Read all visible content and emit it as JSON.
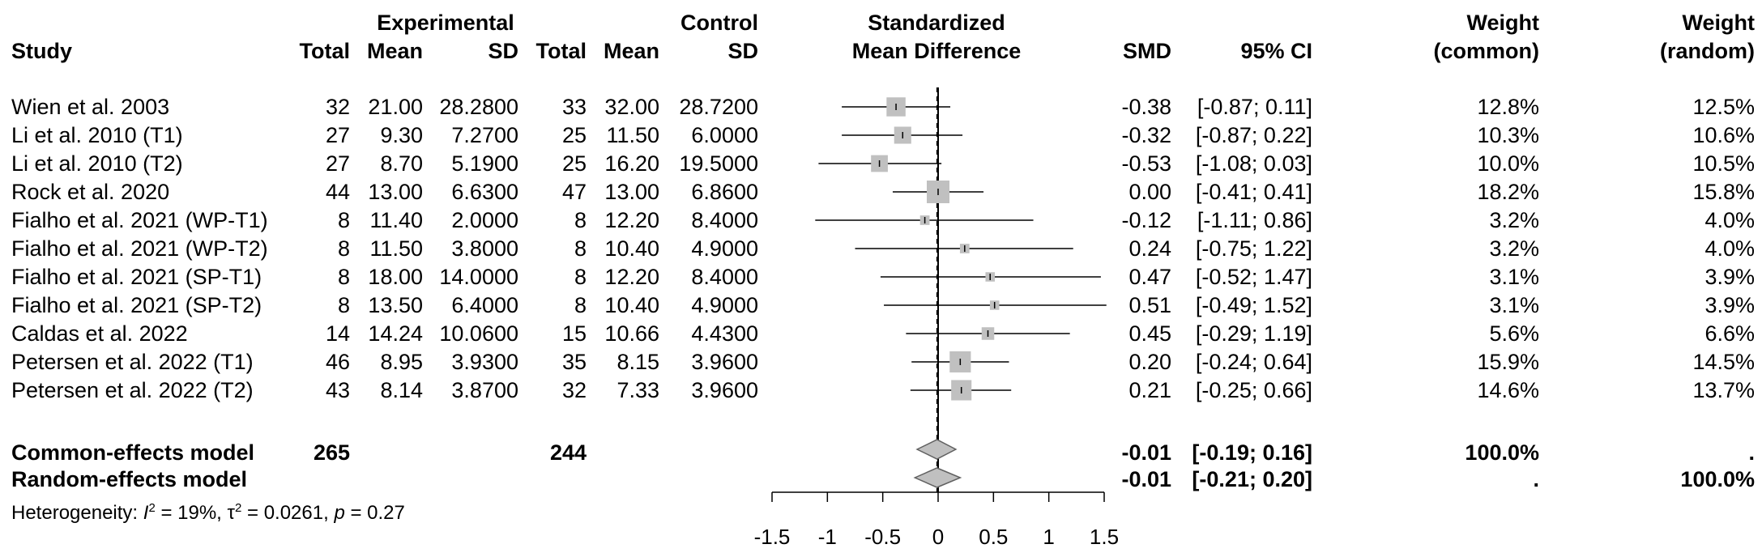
{
  "headers": {
    "experimental": "Experimental",
    "control": "Control",
    "study": "Study",
    "total": "Total",
    "mean": "Mean",
    "sd": "SD",
    "smd_title_1": "Standardized",
    "smd_title_2": "Mean Difference",
    "smd": "SMD",
    "ci": "95% CI",
    "weight": "Weight",
    "weight_common": "(common)",
    "weight_random": "(random)"
  },
  "studies": [
    {
      "study": "Wien et al. 2003",
      "e_total": "32",
      "e_mean": "21.00",
      "e_sd": "28.2800",
      "c_total": "33",
      "c_mean": "32.00",
      "c_sd": "28.7200",
      "smd": "-0.38",
      "ci": "[-0.87; 0.11]",
      "w_common": "12.8%",
      "w_random": "12.5%"
    },
    {
      "study": "Li et al. 2010 (T1)",
      "e_total": "27",
      "e_mean": "9.30",
      "e_sd": "7.2700",
      "c_total": "25",
      "c_mean": "11.50",
      "c_sd": "6.0000",
      "smd": "-0.32",
      "ci": "[-0.87; 0.22]",
      "w_common": "10.3%",
      "w_random": "10.6%"
    },
    {
      "study": "Li et al. 2010 (T2)",
      "e_total": "27",
      "e_mean": "8.70",
      "e_sd": "5.1900",
      "c_total": "25",
      "c_mean": "16.20",
      "c_sd": "19.5000",
      "smd": "-0.53",
      "ci": "[-1.08; 0.03]",
      "w_common": "10.0%",
      "w_random": "10.5%"
    },
    {
      "study": "Rock et al. 2020",
      "e_total": "44",
      "e_mean": "13.00",
      "e_sd": "6.6300",
      "c_total": "47",
      "c_mean": "13.00",
      "c_sd": "6.8600",
      "smd": "0.00",
      "ci": "[-0.41; 0.41]",
      "w_common": "18.2%",
      "w_random": "15.8%"
    },
    {
      "study": "Fialho et al. 2021 (WP-T1)",
      "e_total": "8",
      "e_mean": "11.40",
      "e_sd": "2.0000",
      "c_total": "8",
      "c_mean": "12.20",
      "c_sd": "8.4000",
      "smd": "-0.12",
      "ci": "[-1.11; 0.86]",
      "w_common": "3.2%",
      "w_random": "4.0%"
    },
    {
      "study": "Fialho et al. 2021 (WP-T2)",
      "e_total": "8",
      "e_mean": "11.50",
      "e_sd": "3.8000",
      "c_total": "8",
      "c_mean": "10.40",
      "c_sd": "4.9000",
      "smd": "0.24",
      "ci": "[-0.75; 1.22]",
      "w_common": "3.2%",
      "w_random": "4.0%"
    },
    {
      "study": "Fialho et al. 2021 (SP-T1)",
      "e_total": "8",
      "e_mean": "18.00",
      "e_sd": "14.0000",
      "c_total": "8",
      "c_mean": "12.20",
      "c_sd": "8.4000",
      "smd": "0.47",
      "ci": "[-0.52; 1.47]",
      "w_common": "3.1%",
      "w_random": "3.9%"
    },
    {
      "study": "Fialho et al. 2021 (SP-T2)",
      "e_total": "8",
      "e_mean": "13.50",
      "e_sd": "6.4000",
      "c_total": "8",
      "c_mean": "10.40",
      "c_sd": "4.9000",
      "smd": "0.51",
      "ci": "[-0.49; 1.52]",
      "w_common": "3.1%",
      "w_random": "3.9%"
    },
    {
      "study": "Caldas et al. 2022",
      "e_total": "14",
      "e_mean": "14.24",
      "e_sd": "10.0600",
      "c_total": "15",
      "c_mean": "10.66",
      "c_sd": "4.4300",
      "smd": "0.45",
      "ci": "[-0.29; 1.19]",
      "w_common": "5.6%",
      "w_random": "6.6%"
    },
    {
      "study": "Petersen et al. 2022 (T1)",
      "e_total": "46",
      "e_mean": "8.95",
      "e_sd": "3.9300",
      "c_total": "35",
      "c_mean": "8.15",
      "c_sd": "3.9600",
      "smd": "0.20",
      "ci": "[-0.24; 0.64]",
      "w_common": "15.9%",
      "w_random": "14.5%"
    },
    {
      "study": "Petersen et al. 2022 (T2)",
      "e_total": "43",
      "e_mean": "8.14",
      "e_sd": "3.8700",
      "c_total": "32",
      "c_mean": "7.33",
      "c_sd": "3.9600",
      "smd": "0.21",
      "ci": "[-0.25; 0.66]",
      "w_common": "14.6%",
      "w_random": "13.7%"
    }
  ],
  "common_model": {
    "label": "Common-effects model",
    "e_total": "265",
    "c_total": "244",
    "smd": "-0.01",
    "ci": "[-0.19; 0.16]",
    "w_common": "100.0%",
    "w_random": "."
  },
  "random_model": {
    "label": "Random-effects model",
    "smd": "-0.01",
    "ci": "[-0.21; 0.20]",
    "w_common": ".",
    "w_random": "100.0%"
  },
  "heterogeneity": {
    "label": "Heterogeneity: ",
    "i2_sym": "I",
    "i2_sup": "2",
    "i2_val": " = 19%, ",
    "tau2_sym": "τ",
    "tau2_sup": "2",
    "tau2_val": " = 0.0261, ",
    "p_sym": "p",
    "p_val": " = 0.27"
  },
  "chart_data": {
    "type": "forest",
    "xlabel": "",
    "xlim": [
      -1.5,
      1.5
    ],
    "ticks": [
      -1.5,
      -1,
      -0.5,
      0,
      0.5,
      1,
      1.5
    ],
    "tick_labels": [
      "-1.5",
      "-1",
      "-0.5",
      "0",
      "0.5",
      "1",
      "1.5"
    ],
    "reference_line": 0,
    "studies": [
      {
        "smd": -0.38,
        "lower": -0.87,
        "upper": 0.11,
        "weight": 12.8
      },
      {
        "smd": -0.32,
        "lower": -0.87,
        "upper": 0.22,
        "weight": 10.3
      },
      {
        "smd": -0.53,
        "lower": -1.08,
        "upper": 0.03,
        "weight": 10.0
      },
      {
        "smd": 0.0,
        "lower": -0.41,
        "upper": 0.41,
        "weight": 18.2
      },
      {
        "smd": -0.12,
        "lower": -1.11,
        "upper": 0.86,
        "weight": 3.2
      },
      {
        "smd": 0.24,
        "lower": -0.75,
        "upper": 1.22,
        "weight": 3.2
      },
      {
        "smd": 0.47,
        "lower": -0.52,
        "upper": 1.47,
        "weight": 3.1
      },
      {
        "smd": 0.51,
        "lower": -0.49,
        "upper": 1.52,
        "weight": 3.1
      },
      {
        "smd": 0.45,
        "lower": -0.29,
        "upper": 1.19,
        "weight": 5.6
      },
      {
        "smd": 0.2,
        "lower": -0.24,
        "upper": 0.64,
        "weight": 15.9
      },
      {
        "smd": 0.21,
        "lower": -0.25,
        "upper": 0.66,
        "weight": 14.6
      }
    ],
    "pooled": [
      {
        "model": "common",
        "smd": -0.01,
        "lower": -0.19,
        "upper": 0.16
      },
      {
        "model": "random",
        "smd": -0.01,
        "lower": -0.21,
        "upper": 0.2
      }
    ],
    "colors": {
      "square": "#c0c0c0",
      "diamond": "#c0c0c0",
      "line": "#000000"
    }
  }
}
